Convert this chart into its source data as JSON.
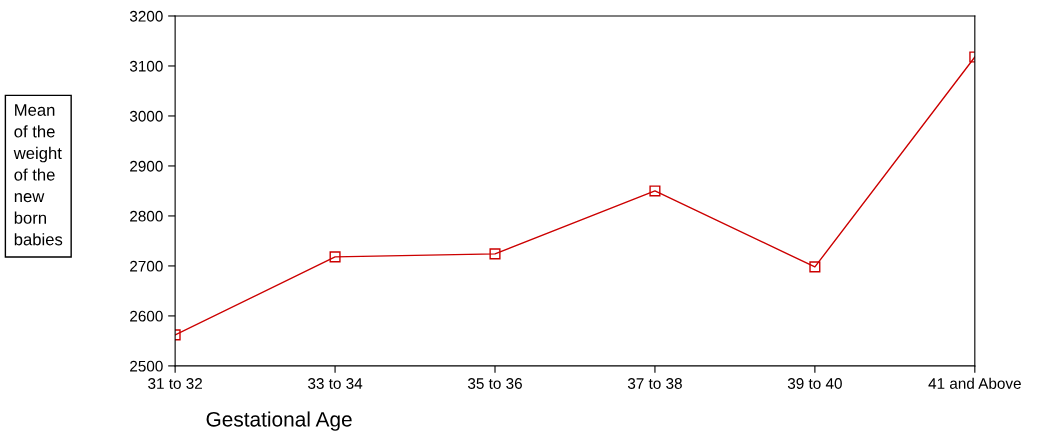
{
  "chart_data": {
    "type": "line",
    "xlabel": "Gestational Age",
    "ylabel": "Mean\nof the\nweight\nof the\nnew\nborn\nbabies",
    "categories": [
      "31 to 32",
      "33 to 34",
      "35 to 36",
      "37 to 38",
      "39 to 40",
      "41 and Above"
    ],
    "series": [
      {
        "color": "#cc0000",
        "values": [
          2562,
          2718,
          2724,
          2850,
          2698,
          3118
        ]
      }
    ],
    "ylim": [
      2500,
      3200
    ],
    "yticks": [
      2500,
      2600,
      2700,
      2800,
      2900,
      3000,
      3100,
      3200
    ],
    "marker": "square",
    "line_style": "solid",
    "grid": false,
    "legend": false
  }
}
